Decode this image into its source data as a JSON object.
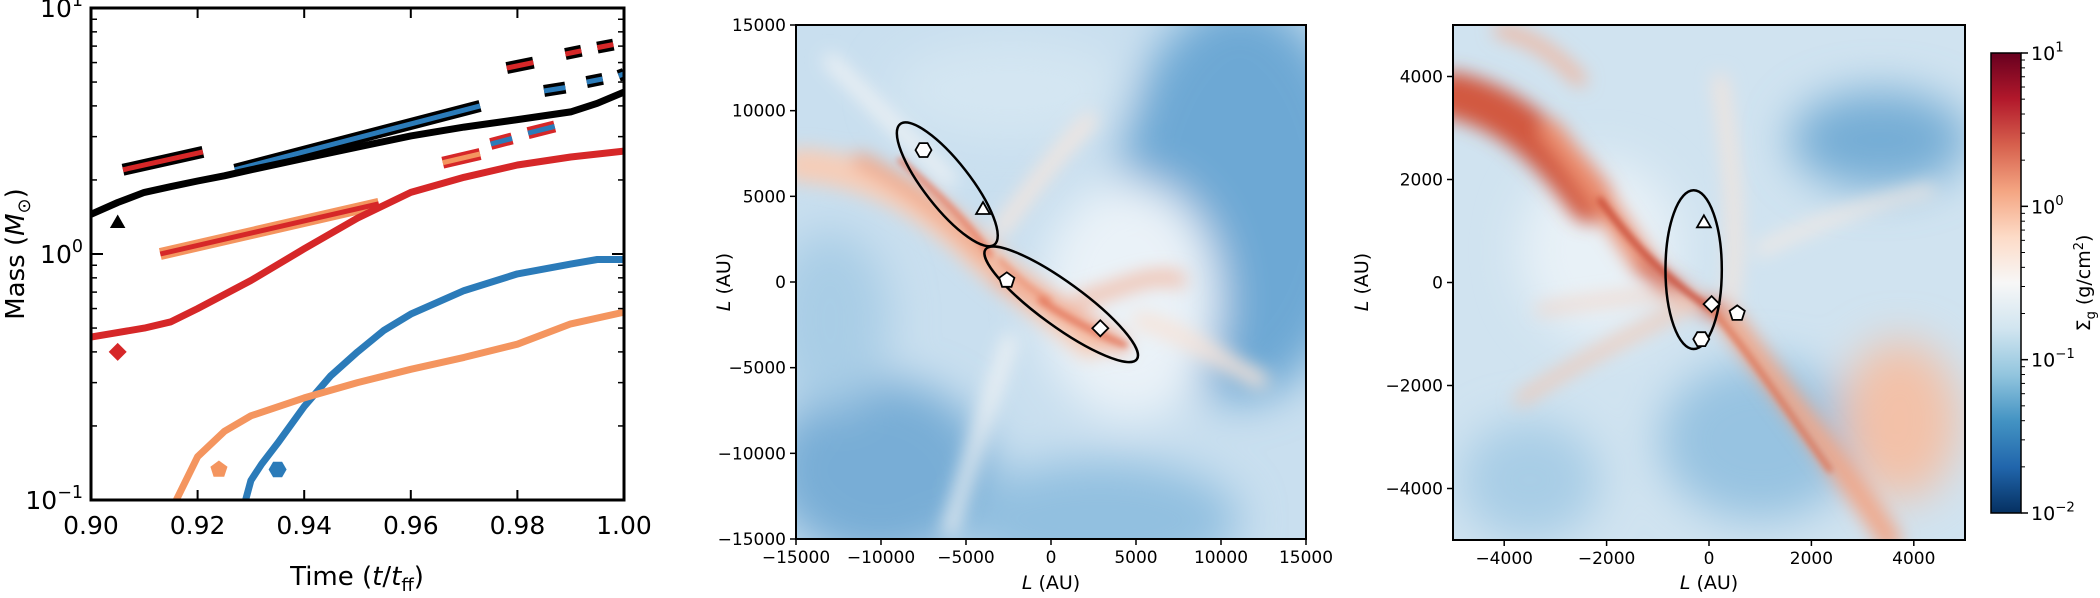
{
  "chart_data": [
    {
      "type": "line",
      "panel": "mass-vs-time",
      "xlabel": "Time  (t/t_ff)",
      "ylabel": "Mass  (M_⊙)",
      "xlim": [
        0.9,
        1.0
      ],
      "ylim": [
        0.1,
        10
      ],
      "yscale": "log",
      "x_ticks": [
        "0.90",
        "0.92",
        "0.94",
        "0.96",
        "0.98",
        "1.00"
      ],
      "y_ticks": [
        "10^-1",
        "10^0",
        "10^1"
      ],
      "series": [
        {
          "color": "#000000",
          "marker": "triangle",
          "x": [
            0.9,
            0.905,
            0.91,
            0.915,
            0.92,
            0.925,
            0.93,
            0.94,
            0.95,
            0.96,
            0.97,
            0.98,
            0.99,
            0.995,
            1.0
          ],
          "y": [
            1.45,
            1.62,
            1.78,
            1.88,
            1.98,
            2.08,
            2.2,
            2.45,
            2.72,
            3.02,
            3.28,
            3.52,
            3.78,
            4.1,
            4.55
          ]
        },
        {
          "color": "#d62728",
          "marker": "diamond",
          "x": [
            0.9,
            0.91,
            0.915,
            0.92,
            0.93,
            0.94,
            0.95,
            0.96,
            0.97,
            0.98,
            0.99,
            1.0
          ],
          "y": [
            0.46,
            0.5,
            0.53,
            0.6,
            0.78,
            1.05,
            1.4,
            1.78,
            2.05,
            2.3,
            2.48,
            2.62
          ]
        },
        {
          "color": "#2b7bb9",
          "marker": "hexagon",
          "x": [
            0.929,
            0.93,
            0.932,
            0.935,
            0.94,
            0.945,
            0.95,
            0.955,
            0.96,
            0.97,
            0.98,
            0.99,
            0.995,
            1.0
          ],
          "y": [
            0.1,
            0.12,
            0.14,
            0.17,
            0.24,
            0.32,
            0.4,
            0.49,
            0.57,
            0.71,
            0.83,
            0.91,
            0.95,
            0.95
          ]
        },
        {
          "color": "#f4955f",
          "marker": "pentagon",
          "x": [
            0.916,
            0.92,
            0.925,
            0.93,
            0.94,
            0.95,
            0.96,
            0.97,
            0.98,
            0.99,
            1.0
          ],
          "y": [
            0.1,
            0.15,
            0.19,
            0.22,
            0.26,
            0.3,
            0.34,
            0.38,
            0.43,
            0.52,
            0.58
          ]
        }
      ],
      "markers": [
        {
          "shape": "triangle",
          "color": "#000000",
          "x": 0.905,
          "y": 1.33
        },
        {
          "shape": "diamond",
          "color": "#d62728",
          "x": 0.905,
          "y": 0.4
        },
        {
          "shape": "pentagon",
          "color": "#f4955f",
          "x": 0.924,
          "y": 0.133
        },
        {
          "shape": "hexagon",
          "color": "#2b7bb9",
          "x": 0.935,
          "y": 0.133
        }
      ],
      "bars": [
        {
          "fill": "#d62728",
          "edge": "#000000",
          "x1": 0.906,
          "y1": 2.2,
          "x2": 0.921,
          "y2": 2.6
        },
        {
          "fill": "#2b7bb9",
          "edge": "#000000",
          "x1": 0.927,
          "y1": 2.2,
          "x2": 0.973,
          "y2": 4.0
        },
        {
          "fill": "#d62728",
          "edge": "#f4955f",
          "x1": 0.913,
          "y1": 1.0,
          "x2": 0.954,
          "y2": 1.6
        },
        {
          "fill": "#f4955f",
          "edge": "#d62728",
          "x1": 0.966,
          "y1": 2.35,
          "x2": 0.973,
          "y2": 2.55
        },
        {
          "fill": "#2b7bb9",
          "edge": "#d62728",
          "x1": 0.975,
          "y1": 2.8,
          "x2": 0.979,
          "y2": 2.95
        },
        {
          "fill": "#2b7bb9",
          "edge": "#d62728",
          "x1": 0.982,
          "y1": 3.1,
          "x2": 0.987,
          "y2": 3.3
        },
        {
          "fill": "#d62728",
          "edge": "#000000",
          "x1": 0.978,
          "y1": 5.7,
          "x2": 0.983,
          "y2": 6.0
        },
        {
          "fill": "#d62728",
          "edge": "#000000",
          "x1": 0.989,
          "y1": 6.5,
          "x2": 0.992,
          "y2": 6.7
        },
        {
          "fill": "#d62728",
          "edge": "#000000",
          "x1": 0.995,
          "y1": 6.9,
          "x2": 0.998,
          "y2": 7.1
        },
        {
          "fill": "#2b7bb9",
          "edge": "#000000",
          "x1": 0.985,
          "y1": 4.6,
          "x2": 0.989,
          "y2": 4.75
        },
        {
          "fill": "#2b7bb9",
          "edge": "#000000",
          "x1": 0.993,
          "y1": 5.0,
          "x2": 0.996,
          "y2": 5.15
        },
        {
          "fill": "#2b7bb9",
          "edge": "#000000",
          "x1": 0.999,
          "y1": 5.3,
          "x2": 1.0,
          "y2": 5.4
        }
      ]
    },
    {
      "type": "heatmap",
      "panel": "surface-density-large",
      "xlabel": "L  (AU)",
      "ylabel": "L  (AU)",
      "xlim": [
        -15000,
        15000
      ],
      "ylim": [
        -15000,
        15000
      ],
      "x_ticks": [
        "−15000",
        "−10000",
        "−5000",
        "0",
        "5000",
        "10000",
        "15000"
      ],
      "y_ticks": [
        "−15000",
        "−10000",
        "−5000",
        "0",
        "5000",
        "10000",
        "15000"
      ],
      "markers": [
        {
          "shape": "hexagon",
          "x": -7500,
          "y": 7700
        },
        {
          "shape": "triangle",
          "x": -4000,
          "y": 4200
        },
        {
          "shape": "pentagon",
          "x": -2600,
          "y": 100
        },
        {
          "shape": "diamond",
          "x": 2900,
          "y": -2700
        }
      ],
      "ellipses": [
        {
          "cx": -6100,
          "cy": 5700,
          "major": 9000,
          "minor": 2700,
          "angle_deg": -52
        },
        {
          "cx": 600,
          "cy": -1300,
          "major": 11000,
          "minor": 2600,
          "angle_deg": -36
        }
      ]
    },
    {
      "type": "heatmap",
      "panel": "surface-density-zoom",
      "xlabel": "L  (AU)",
      "ylabel": "L  (AU)",
      "xlim": [
        -5000,
        5000
      ],
      "ylim": [
        -5000,
        5000
      ],
      "x_ticks": [
        "−4000",
        "−2000",
        "0",
        "2000",
        "4000"
      ],
      "y_ticks": [
        "−4000",
        "−2000",
        "0",
        "2000",
        "4000"
      ],
      "markers": [
        {
          "shape": "triangle",
          "x": -100,
          "y": 1150
        },
        {
          "shape": "diamond",
          "x": 50,
          "y": -420
        },
        {
          "shape": "pentagon",
          "x": 550,
          "y": -600
        },
        {
          "shape": "hexagon",
          "x": -150,
          "y": -1100
        }
      ],
      "ellipses": [
        {
          "cx": -300,
          "cy": 250,
          "major": 3100,
          "minor": 1100,
          "angle_deg": 90
        }
      ]
    }
  ],
  "colorbar": {
    "label": "Σ_g   (g/cm²)",
    "scale": "log",
    "range": [
      0.01,
      10
    ],
    "ticks": [
      "10^1",
      "10^0",
      "10^-1",
      "10^-2"
    ],
    "colors": [
      "#67001f",
      "#b2182b",
      "#d6604d",
      "#f4a582",
      "#fddbc7",
      "#f7f7f7",
      "#d1e5f0",
      "#92c5de",
      "#4393c3",
      "#2166ac",
      "#053061"
    ]
  }
}
